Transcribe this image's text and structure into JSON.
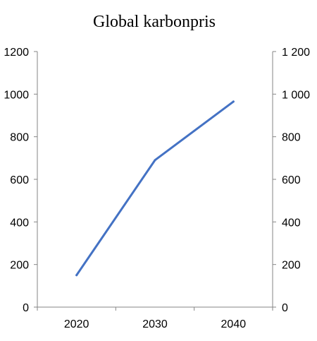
{
  "chart_data": {
    "type": "line",
    "title": "Global karbonpris",
    "xlabel": "",
    "ylabel": "",
    "categories": [
      "2020",
      "2030",
      "2040"
    ],
    "series": [
      {
        "values": [
          150,
          690,
          965
        ],
        "color": "#4472c4"
      }
    ],
    "ylim": [
      0,
      1200
    ],
    "y_left_ticks": [
      {
        "value": 0,
        "label": "0"
      },
      {
        "value": 200,
        "label": "200"
      },
      {
        "value": 400,
        "label": "400"
      },
      {
        "value": 600,
        "label": "600"
      },
      {
        "value": 800,
        "label": "800"
      },
      {
        "value": 1000,
        "label": "1000"
      },
      {
        "value": 1200,
        "label": "1200"
      }
    ],
    "y_right_ticks": [
      {
        "value": 0,
        "label": "0"
      },
      {
        "value": 200,
        "label": "200"
      },
      {
        "value": 400,
        "label": "400"
      },
      {
        "value": 600,
        "label": "600"
      },
      {
        "value": 800,
        "label": "800"
      },
      {
        "value": 1000,
        "label": "1 000"
      },
      {
        "value": 1200,
        "label": "1 200"
      }
    ],
    "grid": false,
    "legend": "none"
  }
}
